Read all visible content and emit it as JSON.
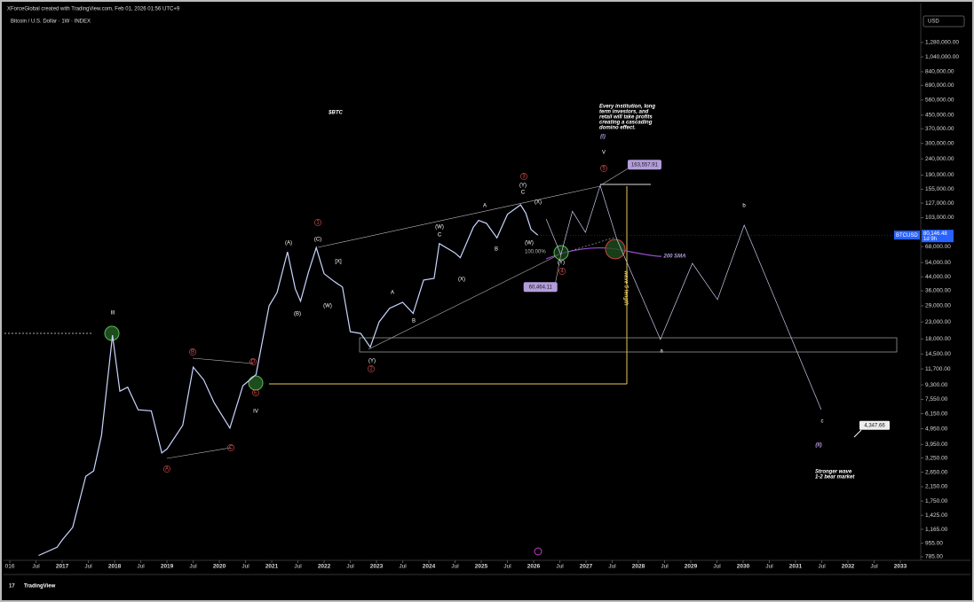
{
  "header": {
    "credit": "XForceGlobal created with TradingView.com, Feb 01, 2026 01:56 UTC+9",
    "symbol": "Bitcoin / U.S. Dollar · 1W · INDEX",
    "currency": "USD",
    "logo": "TradingView"
  },
  "chart_data": {
    "type": "line",
    "log_scale": true,
    "grid": false,
    "color": "#c9d6ff",
    "x": [
      2016.55,
      2016.9,
      2017.0,
      2017.2,
      2017.45,
      2017.6,
      2017.75,
      2017.96,
      2018.1,
      2018.25,
      2018.45,
      2018.7,
      2018.9,
      2019.0,
      2019.3,
      2019.5,
      2019.7,
      2019.9,
      2020.2,
      2020.45,
      2020.7,
      2020.95,
      2021.1,
      2021.3,
      2021.45,
      2021.55,
      2021.7,
      2021.85,
      2022.0,
      2022.2,
      2022.35,
      2022.5,
      2022.7,
      2022.88,
      2023.05,
      2023.25,
      2023.5,
      2023.7,
      2023.9,
      2024.1,
      2024.2,
      2024.5,
      2024.6,
      2024.85,
      2024.95,
      2025.1,
      2025.3,
      2025.5,
      2025.75,
      2025.85,
      2025.95,
      2026.08
    ],
    "values": [
      800,
      900,
      1000,
      1200,
      2500,
      2700,
      4500,
      19000,
      8500,
      9000,
      6500,
      6400,
      3500,
      3700,
      5200,
      12000,
      10000,
      7200,
      5000,
      9200,
      10800,
      29000,
      35000,
      63000,
      37000,
      31000,
      47000,
      67000,
      46000,
      41000,
      38000,
      20000,
      19500,
      16000,
      23000,
      28000,
      30500,
      26000,
      42000,
      43000,
      71000,
      62000,
      58000,
      90000,
      99000,
      95000,
      77000,
      108000,
      124000,
      110000,
      87000,
      80146.48
    ],
    "symbol_label": "BTCUSD",
    "last_price": {
      "value": 80146.48,
      "label": "80,146.48"
    },
    "countdown": "1d 9h",
    "projection": {
      "color": "#c5cae9",
      "x": [
        2026.24,
        2026.52,
        2026.74,
        2026.99,
        2027.27,
        2027.59,
        2028.42,
        2029.03,
        2029.51,
        2030.02,
        2031.49
      ],
      "values": [
        101000,
        60464.11,
        113000,
        83500,
        163557.91,
        75400,
        17900,
        53400,
        31700,
        92500,
        6520
      ],
      "value_labels": [
        null,
        "60,464.11",
        null,
        null,
        "163,557.91",
        null,
        null,
        null,
        null,
        null,
        null
      ]
    },
    "target": {
      "value": 4347.66,
      "label": "4,347.66"
    },
    "xlim": [
      2015.88,
      2033.39
    ],
    "ylim": [
      746,
      1972000
    ],
    "xticks": [
      {
        "value": 2016,
        "label": "016"
      },
      {
        "value": 2016.5,
        "label": "Jul"
      },
      2017,
      {
        "value": 2017.5,
        "label": "Jul"
      },
      2018,
      {
        "value": 2018.5,
        "label": "Jul"
      },
      2019,
      {
        "value": 2019.5,
        "label": "Jul"
      },
      2020,
      {
        "value": 2020.5,
        "label": "Jul"
      },
      2021,
      {
        "value": 2021.5,
        "label": "Jul"
      },
      2022,
      {
        "value": 2022.5,
        "label": "Jul"
      },
      2023,
      {
        "value": 2023.5,
        "label": "Jul"
      },
      2024,
      {
        "value": 2024.5,
        "label": "Jul"
      },
      2025,
      {
        "value": 2025.5,
        "label": "Jul"
      },
      2026,
      {
        "value": 2026.5,
        "label": "Jul"
      },
      2027,
      {
        "value": 2027.5,
        "label": "Jul"
      },
      2028,
      {
        "value": 2028.5,
        "label": "Jul"
      },
      2029,
      {
        "value": 2029.5,
        "label": "Jul"
      },
      2030,
      {
        "value": 2030.5,
        "label": "Jul"
      },
      2031,
      {
        "value": 2031.5,
        "label": "Jul"
      },
      2032,
      {
        "value": 2032.5,
        "label": "Jul"
      },
      2033
    ],
    "yticks": [
      {
        "value": 1280000,
        "label": "1,280,000.00"
      },
      {
        "value": 1040000,
        "label": "1,040,000.00"
      },
      {
        "value": 840000,
        "label": "840,000.00"
      },
      {
        "value": 690000,
        "label": "690,000.00"
      },
      {
        "value": 560000,
        "label": "560,000.00"
      },
      {
        "value": 450000,
        "label": "450,000.00"
      },
      {
        "value": 370000,
        "label": "370,000.00"
      },
      {
        "value": 300000,
        "label": "300,000.00"
      },
      {
        "value": 240000,
        "label": "240,000.00"
      },
      {
        "value": 190000,
        "label": "190,000.00"
      },
      {
        "value": 155000,
        "label": "155,000.00"
      },
      {
        "value": 127000,
        "label": "127,000.00"
      },
      {
        "value": 103000,
        "label": "103,000.00"
      },
      {
        "value": 68000,
        "label": "68,000.00"
      },
      {
        "value": 54000,
        "label": "54,000.00"
      },
      {
        "value": 44000,
        "label": "44,000.00"
      },
      {
        "value": 36000,
        "label": "36,000.00"
      },
      {
        "value": 29000,
        "label": "29,000.00"
      },
      {
        "value": 23000,
        "label": "23,000.00"
      },
      {
        "value": 18000,
        "label": "18,000.00"
      },
      {
        "value": 14500,
        "label": "14,500.00"
      },
      {
        "value": 11700,
        "label": "11,700.00"
      },
      {
        "value": 9300,
        "label": "9,300.00"
      },
      {
        "value": 7550,
        "label": "7,550.00"
      },
      {
        "value": 6150,
        "label": "6,150.00"
      },
      {
        "value": 4950,
        "label": "4,950.00"
      },
      {
        "value": 3950,
        "label": "3,950.00"
      },
      {
        "value": 3250,
        "label": "3,250.00"
      },
      {
        "value": 2650,
        "label": "2,650.00"
      },
      {
        "value": 2150,
        "label": "2,150.00"
      },
      {
        "value": 1750,
        "label": "1,750.00"
      },
      {
        "value": 1425,
        "label": "1,425.00"
      },
      {
        "value": 1165,
        "label": "1,165.00"
      },
      {
        "value": 955,
        "label": "955.00"
      },
      {
        "value": 785,
        "label": "785.00"
      }
    ],
    "annotations": [
      "$BTC",
      "Every institution, long",
      "term investors, and",
      "retail will take profits",
      "creating a cascading",
      "domino effect.",
      "(I)",
      "V",
      "100.00%",
      "200 SMA",
      "wave 5 length",
      "a",
      "b",
      "c",
      "(II)",
      "Stronger wave",
      "1-2 bear market",
      "III",
      "IV",
      "(A)",
      "(C)",
      "(B)",
      "(W)",
      "[X]",
      "(Y)",
      "A",
      "B",
      "(W)",
      "C",
      "(X)",
      "A",
      "B",
      "(Y)",
      "C",
      "(X)",
      "(W)",
      "(Y)",
      "1",
      "2",
      "3",
      "4",
      "5",
      "A",
      "B",
      "C",
      "D",
      "E"
    ]
  }
}
